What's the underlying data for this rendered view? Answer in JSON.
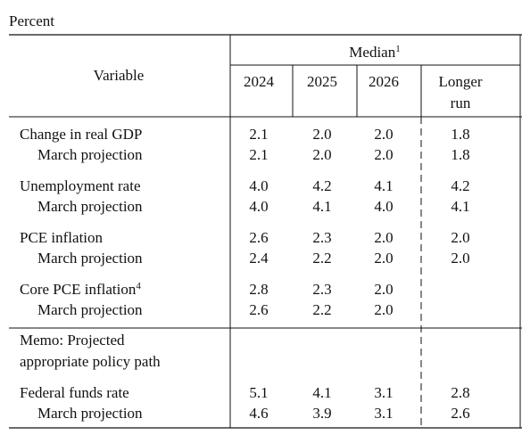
{
  "unit": "Percent",
  "header": {
    "variable": "Variable",
    "median": "Median",
    "median_note": "1",
    "columns": [
      [
        "2024"
      ],
      [
        "2025"
      ],
      [
        "2026"
      ],
      [
        "Longer",
        "run"
      ]
    ]
  },
  "rows": [
    {
      "label": "Change in real GDP",
      "values": [
        "2.1",
        "2.0",
        "2.0",
        "1.8"
      ],
      "march": {
        "label": "March projection",
        "values": [
          "2.1",
          "2.0",
          "2.0",
          "1.8"
        ]
      }
    },
    {
      "label": "Unemployment rate",
      "values": [
        "4.0",
        "4.2",
        "4.1",
        "4.2"
      ],
      "march": {
        "label": "March projection",
        "values": [
          "4.0",
          "4.1",
          "4.0",
          "4.1"
        ]
      }
    },
    {
      "label": "PCE inflation",
      "values": [
        "2.6",
        "2.3",
        "2.0",
        "2.0"
      ],
      "march": {
        "label": "March projection",
        "values": [
          "2.4",
          "2.2",
          "2.0",
          "2.0"
        ]
      }
    },
    {
      "label": "Core PCE inflation",
      "note": "4",
      "values": [
        "2.8",
        "2.3",
        "2.0"
      ],
      "march": {
        "label": "March projection",
        "values": [
          "2.6",
          "2.2",
          "2.0"
        ]
      }
    }
  ],
  "memo": [
    "Memo: Projected",
    "appropriate policy path"
  ],
  "policy": {
    "label": "Federal funds rate",
    "values": [
      "5.1",
      "4.1",
      "3.1",
      "2.8"
    ],
    "march": {
      "label": "March projection",
      "values": [
        "4.6",
        "3.9",
        "3.1",
        "2.6"
      ]
    }
  }
}
